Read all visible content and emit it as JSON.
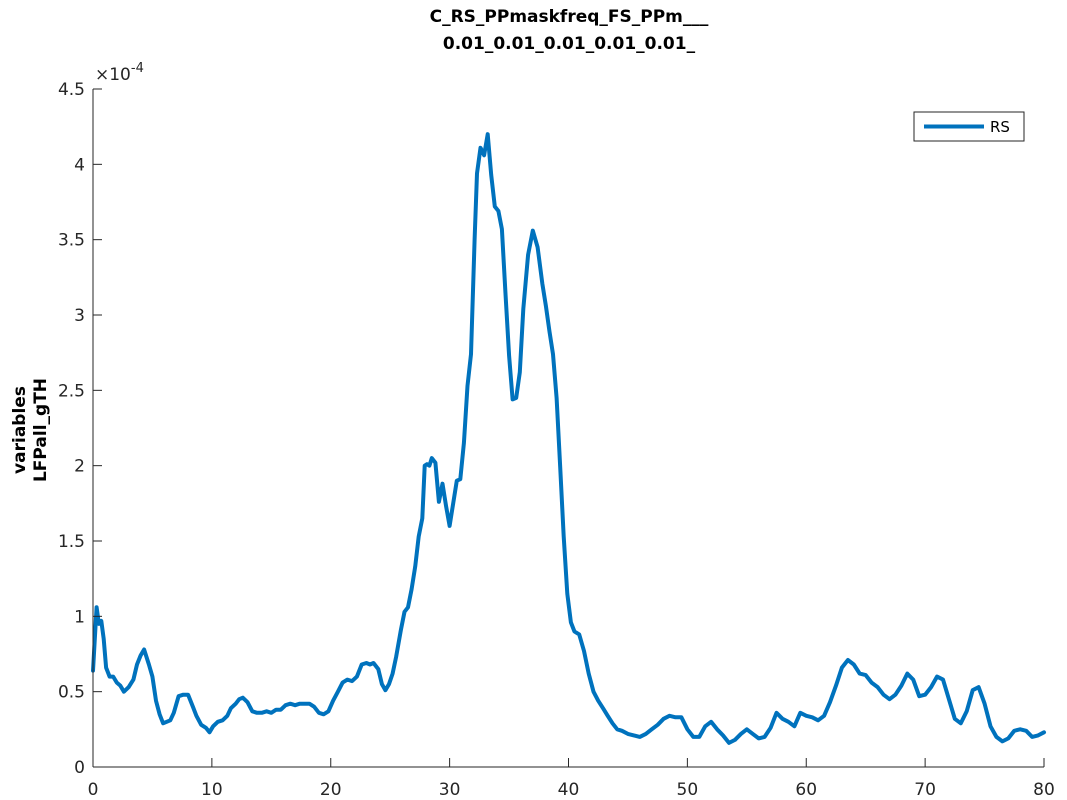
{
  "chart_data": {
    "type": "line",
    "title_lines": [
      "C_RS_PPmaskfreq_FS_PPm___",
      "0.01_0.01_0.01_0.01_0.01_"
    ],
    "ylabel_lines": [
      "variables",
      "LFPall_gTH"
    ],
    "xlabel": "",
    "xlim": [
      0,
      80
    ],
    "ylim": [
      0,
      4.5
    ],
    "y_exponent_base": "×10",
    "y_exponent_power": "-4",
    "x_ticks": [
      0,
      10,
      20,
      30,
      40,
      50,
      60,
      70,
      80
    ],
    "x_tick_labels": [
      "0",
      "10",
      "20",
      "30",
      "40",
      "50",
      "60",
      "70",
      "80"
    ],
    "y_ticks": [
      0,
      0.5,
      1,
      1.5,
      2,
      2.5,
      3,
      3.5,
      4,
      4.5
    ],
    "y_tick_labels": [
      "0",
      "0.5",
      "1",
      "1.5",
      "2",
      "2.5",
      "3",
      "3.5",
      "4",
      "4.5"
    ],
    "grid": false,
    "legend_position": "top-right",
    "series": [
      {
        "name": "RS",
        "color": "#0072bd",
        "x": [
          0,
          0.3,
          0.5,
          0.7,
          0.9,
          1.1,
          1.4,
          1.7,
          2.0,
          2.3,
          2.6,
          3.0,
          3.4,
          3.7,
          4.0,
          4.3,
          4.7,
          5.0,
          5.3,
          5.6,
          5.9,
          6.2,
          6.5,
          6.8,
          7.2,
          7.6,
          8.0,
          8.4,
          8.7,
          9.1,
          9.5,
          9.8,
          10.1,
          10.5,
          10.9,
          11.3,
          11.6,
          12.0,
          12.3,
          12.6,
          13.0,
          13.4,
          13.8,
          14.2,
          14.6,
          15.0,
          15.4,
          15.8,
          16.2,
          16.6,
          17.0,
          17.4,
          17.8,
          18.2,
          18.6,
          19.0,
          19.4,
          19.8,
          20.2,
          20.6,
          21.0,
          21.4,
          21.8,
          22.2,
          22.6,
          23.0,
          23.3,
          23.6,
          24.0,
          24.3,
          24.6,
          24.9,
          25.2,
          25.5,
          25.9,
          26.2,
          26.5,
          26.8,
          27.1,
          27.4,
          27.7,
          27.9,
          28.1,
          28.3,
          28.5,
          28.8,
          29.1,
          29.4,
          29.7,
          30.0,
          30.3,
          30.6,
          30.9,
          31.2,
          31.5,
          31.8,
          32.1,
          32.3,
          32.6,
          32.9,
          33.2,
          33.5,
          33.8,
          34.1,
          34.4,
          34.7,
          35.0,
          35.3,
          35.6,
          35.9,
          36.2,
          36.6,
          37.0,
          37.4,
          37.8,
          38.1,
          38.4,
          38.7,
          39.0,
          39.3,
          39.6,
          39.9,
          40.2,
          40.5,
          40.9,
          41.3,
          41.7,
          42.1,
          42.5,
          42.9,
          43.3,
          43.7,
          44.1,
          44.5,
          45.0,
          45.5,
          46.0,
          46.5,
          47.0,
          47.5,
          48.0,
          48.5,
          49.0,
          49.5,
          50.0,
          50.5,
          51.0,
          51.5,
          52.0,
          52.5,
          53.0,
          53.5,
          54.0,
          54.5,
          55.0,
          55.5,
          56.0,
          56.5,
          57.0,
          57.5,
          58.0,
          58.5,
          59.0,
          59.5,
          60.0,
          60.5,
          61.0,
          61.5,
          62.0,
          62.5,
          63.0,
          63.5,
          64.0,
          64.5,
          65.0,
          65.5,
          66.0,
          66.5,
          67.0,
          67.5,
          68.0,
          68.5,
          69.0,
          69.5,
          70.0,
          70.5,
          71.0,
          71.5,
          72.0,
          72.5,
          73.0,
          73.5,
          74.0,
          74.5,
          75.0,
          75.5,
          76.0,
          76.5,
          77.0,
          77.5,
          78.0,
          78.5,
          79.0,
          79.5,
          80.0
        ],
        "y": [
          0.64,
          1.06,
          0.95,
          0.97,
          0.85,
          0.66,
          0.6,
          0.6,
          0.56,
          0.54,
          0.5,
          0.53,
          0.58,
          0.68,
          0.74,
          0.78,
          0.68,
          0.6,
          0.44,
          0.35,
          0.29,
          0.3,
          0.31,
          0.36,
          0.47,
          0.48,
          0.48,
          0.4,
          0.34,
          0.28,
          0.26,
          0.23,
          0.27,
          0.3,
          0.31,
          0.34,
          0.39,
          0.42,
          0.45,
          0.46,
          0.43,
          0.37,
          0.36,
          0.36,
          0.37,
          0.36,
          0.38,
          0.38,
          0.41,
          0.42,
          0.41,
          0.42,
          0.42,
          0.42,
          0.4,
          0.36,
          0.35,
          0.37,
          0.44,
          0.5,
          0.56,
          0.58,
          0.57,
          0.6,
          0.68,
          0.69,
          0.68,
          0.69,
          0.65,
          0.55,
          0.51,
          0.55,
          0.62,
          0.73,
          0.91,
          1.03,
          1.06,
          1.18,
          1.33,
          1.53,
          1.65,
          2.0,
          2.01,
          2.0,
          2.05,
          2.02,
          1.76,
          1.88,
          1.73,
          1.6,
          1.75,
          1.9,
          1.91,
          2.15,
          2.53,
          2.74,
          3.5,
          3.94,
          4.11,
          4.06,
          4.2,
          3.93,
          3.72,
          3.69,
          3.57,
          3.14,
          2.73,
          2.44,
          2.45,
          2.62,
          3.04,
          3.4,
          3.56,
          3.45,
          3.21,
          3.06,
          2.89,
          2.74,
          2.45,
          1.99,
          1.53,
          1.15,
          0.96,
          0.9,
          0.88,
          0.77,
          0.62,
          0.5,
          0.44,
          0.39,
          0.34,
          0.29,
          0.25,
          0.24,
          0.22,
          0.21,
          0.2,
          0.22,
          0.25,
          0.28,
          0.32,
          0.34,
          0.33,
          0.33,
          0.25,
          0.2,
          0.2,
          0.27,
          0.3,
          0.25,
          0.21,
          0.16,
          0.18,
          0.22,
          0.25,
          0.22,
          0.19,
          0.2,
          0.26,
          0.36,
          0.32,
          0.3,
          0.27,
          0.36,
          0.34,
          0.33,
          0.31,
          0.34,
          0.43,
          0.54,
          0.66,
          0.71,
          0.68,
          0.62,
          0.61,
          0.56,
          0.53,
          0.48,
          0.45,
          0.48,
          0.54,
          0.62,
          0.58,
          0.47,
          0.48,
          0.53,
          0.6,
          0.58,
          0.45,
          0.32,
          0.29,
          0.37,
          0.51,
          0.53,
          0.42,
          0.27,
          0.2,
          0.17,
          0.19,
          0.24,
          0.25,
          0.24,
          0.2,
          0.21,
          0.23
        ]
      }
    ]
  }
}
